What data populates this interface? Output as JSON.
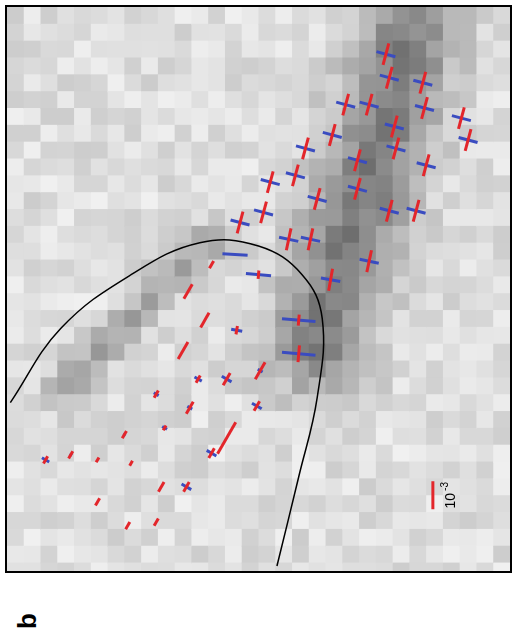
{
  "chart_data": {
    "type": "glyph_map",
    "panel_label": "b",
    "xlim": [
      0,
      30
    ],
    "ylim": [
      0,
      33.5
    ],
    "tick_labels": false,
    "grid": false,
    "boundary": {
      "x": [
        0.2,
        3.2,
        7.4,
        11.5,
        15.0,
        17.6,
        18.8,
        18.5,
        17.4,
        16.1
      ],
      "y": [
        23.5,
        19.1,
        15.9,
        14.0,
        14.2,
        15.9,
        18.5,
        23.2,
        27.9,
        33.2
      ]
    },
    "x": [
      22.6,
      22.8,
      24.8,
      21.6,
      20.2,
      24.9,
      27.1,
      23.1,
      27.5,
      19.4,
      17.8,
      23.2,
      20.9,
      25.0,
      17.2,
      15.7,
      18.5,
      20.9,
      24.4,
      22.8,
      15.3,
      13.9,
      18.1,
      16.8,
      21.6,
      19.3,
      15.0,
      13.6,
      17.4,
      17.4,
      12.2,
      10.8,
      11.8,
      13.7,
      10.5,
      15.1,
      13.1,
      11.4,
      8.9,
      14.9,
      10.9,
      13.1,
      9.4,
      7.0,
      12.2,
      2.3,
      3.8,
      5.4,
      7.4,
      9.2,
      10.7,
      5.4,
      7.2,
      8.9
    ],
    "y": [
      2.8,
      4.2,
      4.5,
      5.8,
      5.8,
      6.0,
      6.6,
      7.1,
      7.9,
      7.6,
      8.4,
      8.4,
      9.1,
      9.4,
      10.0,
      10.4,
      11.4,
      10.8,
      12.1,
      12.1,
      12.2,
      12.8,
      13.8,
      13.8,
      15.1,
      16.2,
      15.9,
      14.7,
      18.6,
      20.6,
      15.3,
      16.9,
      18.6,
      19.2,
      20.4,
      21.6,
      22.1,
      22.1,
      23.0,
      23.7,
      23.8,
      25.6,
      25.0,
      25.4,
      26.5,
      26.9,
      26.6,
      26.9,
      27.1,
      28.5,
      28.5,
      29.4,
      30.8,
      30.6
    ],
    "angle": [
      15,
      15,
      15,
      15,
      15,
      15,
      15,
      15,
      15,
      15,
      15,
      15,
      15,
      15,
      15,
      15,
      15,
      15,
      15,
      15,
      15,
      15,
      12,
      12,
      12,
      10,
      5,
      3,
      5,
      5,
      30,
      30,
      30,
      10,
      30,
      30,
      30,
      30,
      30,
      30,
      30,
      30,
      30,
      30,
      30,
      30,
      30,
      30,
      30,
      30,
      30,
      30,
      30,
      30
    ],
    "series": [
      {
        "color": "#e3262b",
        "values": [
          0.0008,
          0.0008,
          0.0008,
          0.0008,
          0.0008,
          0.0008,
          0.0008,
          0.0008,
          0.0008,
          0.0008,
          0.0008,
          0.0008,
          0.0008,
          0.0008,
          0.0008,
          0.0008,
          0.0008,
          0.0008,
          0.0008,
          0.0008,
          0.0008,
          0.0008,
          0.0008,
          0.0008,
          0.0008,
          0.0008,
          0.0003,
          0,
          0.0004,
          0.0006,
          0.0003,
          0.0006,
          0.0006,
          0.0003,
          0.0007,
          0.0007,
          0.0005,
          0.0003,
          0.0003,
          0.0004,
          0.0005,
          0.0013,
          0.0002,
          0.0003,
          0.0004,
          0.0003,
          0.0003,
          0.0002,
          0.0002,
          0.0004,
          0.0004,
          0.0003,
          0.0003,
          0.0003
        ]
      },
      {
        "color": "#3a4cc0",
        "values": [
          0.0007,
          0.0007,
          0.0007,
          0.0007,
          0.0007,
          0.0007,
          0.0007,
          0.0007,
          0.0007,
          0.0007,
          0.0007,
          0.0007,
          0.0007,
          0.0007,
          0.0007,
          0.0007,
          0.0007,
          0.0007,
          0.0007,
          0.0007,
          0.0007,
          0.0007,
          0.0007,
          0.0007,
          0.0007,
          0.0007,
          0.0009,
          0.0009,
          0.0012,
          0.0012,
          0,
          0,
          0,
          0.0004,
          0,
          0.0002,
          0.0004,
          0.0003,
          0.0002,
          0.0004,
          0.0002,
          0,
          0.0002,
          0.0001,
          0.0004,
          0.0003,
          0.0001,
          0,
          0,
          0,
          0.0004,
          0,
          0,
          0
        ]
      }
    ],
    "scale_bar": {
      "value": 0.001,
      "label": "10-3"
    }
  }
}
